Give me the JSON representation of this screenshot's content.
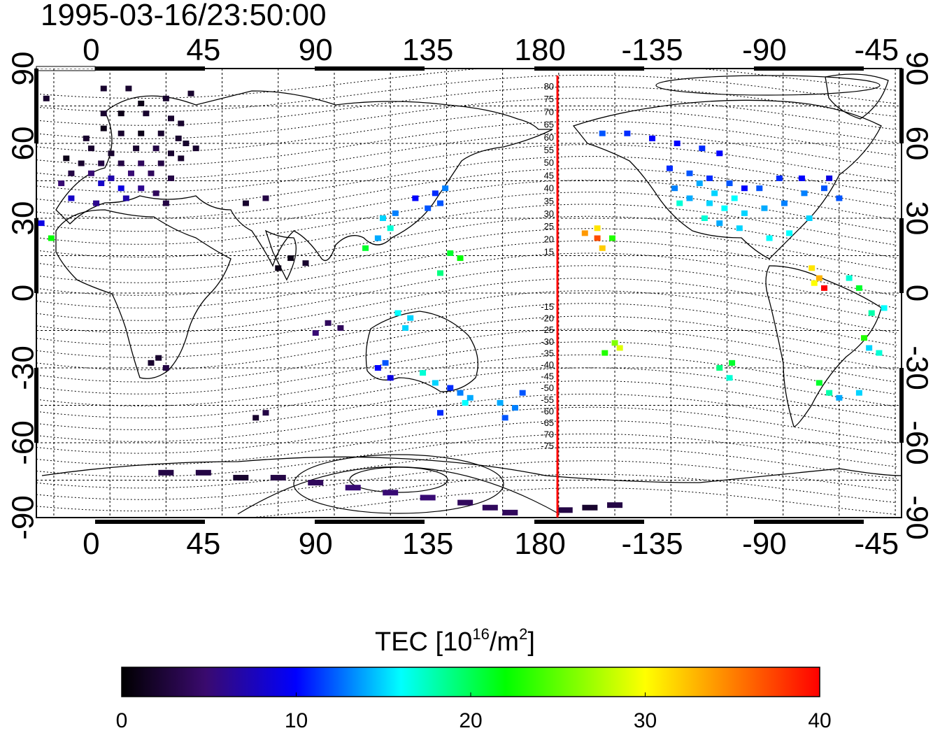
{
  "timestamp": "1995-03-16/23:50:00",
  "top_lon_ticks": [
    "0",
    "45",
    "90",
    "135",
    "180",
    "-135",
    "-90",
    "-45"
  ],
  "bottom_lon_ticks": [
    "0",
    "45",
    "90",
    "135",
    "180",
    "-135",
    "-90",
    "-45"
  ],
  "lat_ticks": [
    "90",
    "60",
    "30",
    "0",
    "-30",
    "-60",
    "-90"
  ],
  "dip_labels_north": [
    "80",
    "75",
    "70",
    "65",
    "60",
    "55",
    "50",
    "45",
    "40",
    "35",
    "30",
    "25",
    "20",
    "15"
  ],
  "dip_labels_south": [
    "-15",
    "-20",
    "-25",
    "-30",
    "-35",
    "-40",
    "-45",
    "-50",
    "-55",
    "-60",
    "-65",
    "-70",
    "-75"
  ],
  "colorbar": {
    "title_prefix": "TEC  [10",
    "title_exp1": "16",
    "title_mid": "/m",
    "title_exp2": "2",
    "title_suffix": "]",
    "ticks": [
      "0",
      "10",
      "20",
      "30",
      "40"
    ],
    "range": [
      0,
      40
    ],
    "colors": [
      "#000000",
      "#3a0a6e",
      "#0000ff",
      "#00ffff",
      "#00ff00",
      "#ffff00",
      "#ff0000"
    ]
  },
  "chart_data": {
    "type": "heatmap",
    "projection": "equirectangular",
    "xlim": [
      -22,
      325
    ],
    "ylim": [
      -90,
      90
    ],
    "grid": true,
    "meridian_marker_lon": 187,
    "value_units": "TEC",
    "points": [
      [
        5,
        82,
        2
      ],
      [
        15,
        82,
        2
      ],
      [
        -18,
        78,
        2
      ],
      [
        20,
        76,
        1
      ],
      [
        30,
        78,
        2
      ],
      [
        40,
        80,
        2
      ],
      [
        5,
        72,
        2
      ],
      [
        12,
        72,
        1
      ],
      [
        22,
        72,
        2
      ],
      [
        32,
        70,
        2
      ],
      [
        36,
        68,
        2
      ],
      [
        5,
        66,
        1
      ],
      [
        12,
        64,
        2
      ],
      [
        20,
        64,
        1
      ],
      [
        28,
        64,
        2
      ],
      [
        35,
        62,
        2
      ],
      [
        -2,
        62,
        2
      ],
      [
        38,
        60,
        2
      ],
      [
        0,
        58,
        2
      ],
      [
        8,
        56,
        2
      ],
      [
        18,
        58,
        2
      ],
      [
        26,
        58,
        3
      ],
      [
        32,
        56,
        2
      ],
      [
        42,
        58,
        2
      ],
      [
        -10,
        54,
        1
      ],
      [
        -4,
        52,
        2
      ],
      [
        4,
        52,
        3
      ],
      [
        12,
        52,
        3
      ],
      [
        20,
        52,
        4
      ],
      [
        28,
        52,
        3
      ],
      [
        36,
        54,
        2
      ],
      [
        -8,
        48,
        3
      ],
      [
        0,
        48,
        5
      ],
      [
        8,
        46,
        7
      ],
      [
        16,
        48,
        5
      ],
      [
        24,
        48,
        4
      ],
      [
        32,
        46,
        3
      ],
      [
        -12,
        44,
        5
      ],
      [
        4,
        44,
        8
      ],
      [
        12,
        42,
        9
      ],
      [
        20,
        42,
        6
      ],
      [
        26,
        40,
        4
      ],
      [
        -8,
        38,
        8
      ],
      [
        2,
        36,
        6
      ],
      [
        14,
        38,
        7
      ],
      [
        30,
        36,
        3
      ],
      [
        62,
        36,
        2
      ],
      [
        70,
        38,
        3
      ],
      [
        -20,
        28,
        9
      ],
      [
        -16,
        22,
        22
      ],
      [
        80,
        14,
        1
      ],
      [
        75,
        10,
        1
      ],
      [
        86,
        12,
        2
      ],
      [
        117,
        30,
        15
      ],
      [
        120,
        26,
        17
      ],
      [
        115,
        22,
        14
      ],
      [
        110,
        18,
        21
      ],
      [
        122,
        32,
        13
      ],
      [
        135,
        34,
        12
      ],
      [
        140,
        36,
        12
      ],
      [
        130,
        38,
        10
      ],
      [
        138,
        40,
        11
      ],
      [
        142,
        42,
        13
      ],
      [
        144,
        16,
        21
      ],
      [
        148,
        14,
        22
      ],
      [
        140,
        8,
        19
      ],
      [
        95,
        -12,
        4
      ],
      [
        100,
        -14,
        4
      ],
      [
        90,
        -16,
        5
      ],
      [
        123,
        -8,
        16
      ],
      [
        128,
        -10,
        15
      ],
      [
        126,
        -14,
        15
      ],
      [
        115,
        -30,
        10
      ],
      [
        120,
        -34,
        9
      ],
      [
        118,
        -28,
        12
      ],
      [
        133,
        -32,
        17
      ],
      [
        138,
        -36,
        15
      ],
      [
        144,
        -38,
        11
      ],
      [
        148,
        -40,
        13
      ],
      [
        150,
        -44,
        16
      ],
      [
        152,
        -42,
        14
      ],
      [
        140,
        -48,
        11
      ],
      [
        164,
        -44,
        14
      ],
      [
        170,
        -46,
        13
      ],
      [
        173,
        -40,
        12
      ],
      [
        166,
        -50,
        12
      ],
      [
        70,
        -48,
        3
      ],
      [
        66,
        -50,
        2
      ],
      [
        27,
        -26,
        2
      ],
      [
        30,
        -30,
        3
      ],
      [
        24,
        -28,
        2
      ],
      [
        30,
        -72,
        3
      ],
      [
        45,
        -72,
        3
      ],
      [
        60,
        -74,
        2
      ],
      [
        75,
        -74,
        3
      ],
      [
        90,
        -76,
        4
      ],
      [
        105,
        -78,
        5
      ],
      [
        120,
        -80,
        5
      ],
      [
        135,
        -82,
        5
      ],
      [
        150,
        -84,
        4
      ],
      [
        160,
        -86,
        4
      ],
      [
        168,
        -88,
        4
      ],
      [
        200,
        -86,
        2
      ],
      [
        190,
        -87,
        3
      ],
      [
        210,
        -85,
        3
      ],
      [
        198,
        24,
        34
      ],
      [
        203,
        22,
        37
      ],
      [
        205,
        18,
        32
      ],
      [
        209,
        22,
        23
      ],
      [
        203,
        26,
        31
      ],
      [
        210,
        -20,
        26
      ],
      [
        212,
        -22,
        29
      ],
      [
        206,
        -24,
        23
      ],
      [
        252,
        -30,
        19
      ],
      [
        257,
        -28,
        21
      ],
      [
        256,
        -34,
        17
      ],
      [
        205,
        64,
        12
      ],
      [
        215,
        64,
        11
      ],
      [
        225,
        62,
        10
      ],
      [
        235,
        60,
        10
      ],
      [
        245,
        58,
        11
      ],
      [
        252,
        56,
        10
      ],
      [
        232,
        50,
        11
      ],
      [
        240,
        48,
        12
      ],
      [
        248,
        46,
        11
      ],
      [
        256,
        44,
        12
      ],
      [
        262,
        42,
        10
      ],
      [
        268,
        42,
        12
      ],
      [
        240,
        38,
        14
      ],
      [
        248,
        36,
        15
      ],
      [
        254,
        34,
        16
      ],
      [
        262,
        32,
        15
      ],
      [
        270,
        34,
        14
      ],
      [
        278,
        36,
        13
      ],
      [
        286,
        40,
        13
      ],
      [
        294,
        42,
        12
      ],
      [
        300,
        38,
        12
      ],
      [
        296,
        46,
        9
      ],
      [
        285,
        46,
        10
      ],
      [
        276,
        46,
        11
      ],
      [
        244,
        44,
        14
      ],
      [
        250,
        40,
        15
      ],
      [
        258,
        38,
        16
      ],
      [
        234,
        42,
        13
      ],
      [
        236,
        36,
        17
      ],
      [
        246,
        30,
        17
      ],
      [
        252,
        28,
        14
      ],
      [
        260,
        26,
        15
      ],
      [
        272,
        22,
        16
      ],
      [
        280,
        24,
        16
      ],
      [
        288,
        30,
        15
      ],
      [
        289,
        10,
        31
      ],
      [
        292,
        6,
        33
      ],
      [
        290,
        4,
        30
      ],
      [
        294,
        2,
        40
      ],
      [
        304,
        6,
        17
      ],
      [
        308,
        2,
        21
      ],
      [
        318,
        -6,
        16
      ],
      [
        313,
        -8,
        18
      ],
      [
        310,
        -18,
        23
      ],
      [
        312,
        -22,
        15
      ],
      [
        316,
        -24,
        17
      ],
      [
        292,
        -36,
        21
      ],
      [
        296,
        -40,
        18
      ],
      [
        300,
        -42,
        14
      ],
      [
        308,
        -40,
        15
      ]
    ]
  }
}
